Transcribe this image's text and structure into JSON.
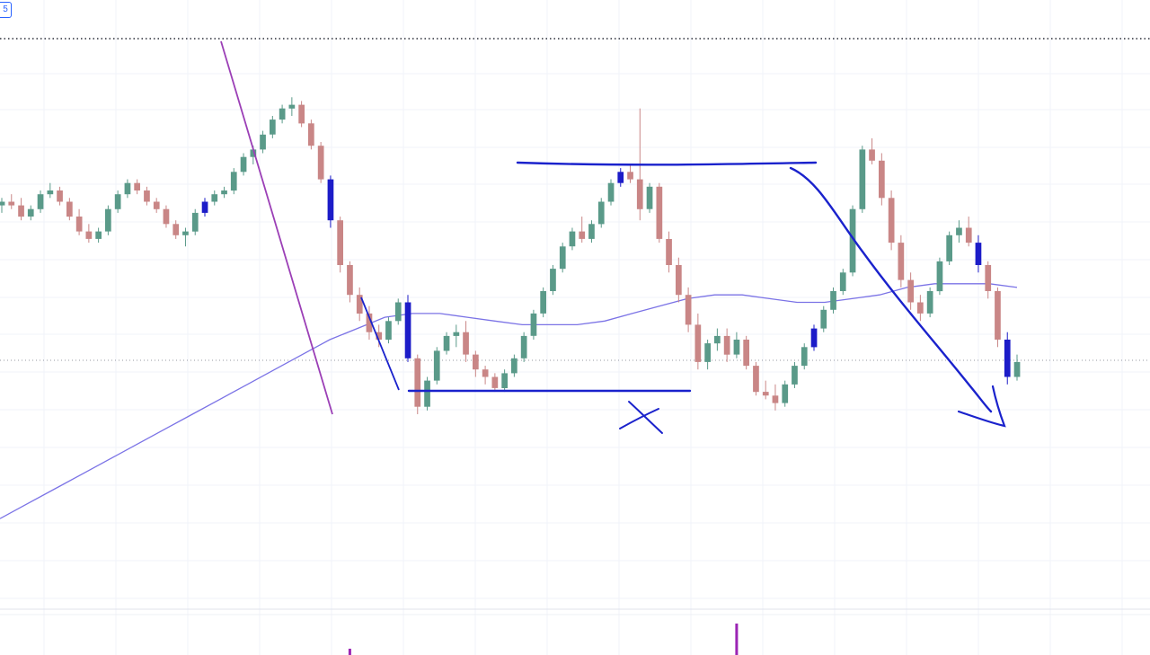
{
  "badge": {
    "text": "5"
  },
  "colors": {
    "up_candle": "#5a9a89",
    "down_candle": "#c98686",
    "highlight_candle": "#1c1cc8",
    "moving_average": "#7b73e6",
    "annotation_ink": "#1a22cc",
    "annotation_purple": "#9b3fb6",
    "volume_spike": "#9b25b4",
    "grid": "#f0f3fa"
  },
  "chart_data": {
    "type": "candlestick",
    "title": "",
    "xlabel": "",
    "ylabel": "",
    "grid": true,
    "legend": "none",
    "price_range": [
      0,
      100
    ],
    "candles": [
      [
        56,
        58,
        54,
        57
      ],
      [
        57,
        59,
        55,
        56
      ],
      [
        56,
        58,
        52,
        53
      ],
      [
        53,
        56,
        52,
        55
      ],
      [
        55,
        60,
        54,
        59
      ],
      [
        59,
        62,
        58,
        60
      ],
      [
        60,
        61,
        56,
        57
      ],
      [
        57,
        58,
        52,
        53
      ],
      [
        53,
        55,
        48,
        49
      ],
      [
        49,
        51,
        46,
        47
      ],
      [
        47,
        50,
        46,
        49
      ],
      [
        49,
        56,
        48,
        55
      ],
      [
        55,
        60,
        54,
        59
      ],
      [
        59,
        63,
        58,
        62
      ],
      [
        62,
        63,
        59,
        60
      ],
      [
        60,
        61,
        56,
        57
      ],
      [
        57,
        58,
        54,
        55
      ],
      [
        55,
        56,
        50,
        51
      ],
      [
        51,
        52,
        47,
        48
      ],
      [
        48,
        50,
        45,
        49
      ],
      [
        49,
        55,
        48,
        54
      ],
      [
        54,
        58,
        53,
        57
      ],
      [
        57,
        60,
        56,
        59
      ],
      [
        59,
        61,
        58,
        60
      ],
      [
        60,
        66,
        59,
        65
      ],
      [
        65,
        70,
        64,
        69
      ],
      [
        69,
        72,
        67,
        71
      ],
      [
        71,
        76,
        70,
        75
      ],
      [
        75,
        80,
        74,
        79
      ],
      [
        79,
        83,
        78,
        82
      ],
      [
        82,
        85,
        80,
        83
      ],
      [
        83,
        84,
        77,
        78
      ],
      [
        78,
        79,
        71,
        72
      ],
      [
        72,
        73,
        62,
        63
      ],
      [
        63,
        64,
        50,
        52
      ],
      [
        52,
        53,
        38,
        40
      ],
      [
        40,
        41,
        30,
        32
      ],
      [
        32,
        34,
        25,
        27
      ],
      [
        27,
        29,
        20,
        22
      ],
      [
        22,
        24,
        18,
        20
      ],
      [
        20,
        26,
        19,
        25
      ],
      [
        25,
        31,
        24,
        30
      ],
      [
        30,
        32,
        14,
        15
      ],
      [
        15,
        16,
        0,
        2
      ],
      [
        2,
        10,
        1,
        9
      ],
      [
        9,
        18,
        8,
        17
      ],
      [
        17,
        22,
        16,
        21
      ],
      [
        21,
        24,
        18,
        22
      ],
      [
        22,
        25,
        14,
        16
      ],
      [
        16,
        17,
        10,
        12
      ],
      [
        12,
        13,
        8,
        10
      ],
      [
        10,
        11,
        6,
        7
      ],
      [
        7,
        12,
        6,
        11
      ],
      [
        11,
        16,
        10,
        15
      ],
      [
        15,
        22,
        14,
        21
      ],
      [
        21,
        28,
        20,
        27
      ],
      [
        27,
        34,
        26,
        33
      ],
      [
        33,
        40,
        32,
        39
      ],
      [
        39,
        46,
        38,
        45
      ],
      [
        45,
        50,
        44,
        49
      ],
      [
        49,
        53,
        46,
        47
      ],
      [
        47,
        52,
        46,
        51
      ],
      [
        51,
        58,
        50,
        57
      ],
      [
        57,
        63,
        56,
        62
      ],
      [
        62,
        66,
        61,
        65
      ],
      [
        65,
        67,
        62,
        63
      ],
      [
        63,
        82,
        52,
        55
      ],
      [
        55,
        62,
        54,
        61
      ],
      [
        61,
        62,
        46,
        47
      ],
      [
        47,
        49,
        38,
        40
      ],
      [
        40,
        42,
        30,
        32
      ],
      [
        32,
        34,
        22,
        24
      ],
      [
        24,
        27,
        12,
        14
      ],
      [
        14,
        20,
        12,
        19
      ],
      [
        19,
        23,
        17,
        21
      ],
      [
        21,
        23,
        14,
        16
      ],
      [
        16,
        22,
        15,
        20
      ],
      [
        20,
        21,
        12,
        13
      ],
      [
        13,
        14,
        5,
        6
      ],
      [
        6,
        9,
        4,
        5
      ],
      [
        5,
        8,
        1,
        3
      ],
      [
        3,
        9,
        2,
        8
      ],
      [
        8,
        14,
        7,
        13
      ],
      [
        13,
        19,
        12,
        18
      ],
      [
        18,
        24,
        17,
        23
      ],
      [
        23,
        29,
        22,
        28
      ],
      [
        28,
        34,
        27,
        33
      ],
      [
        33,
        39,
        32,
        38
      ],
      [
        38,
        56,
        37,
        55
      ],
      [
        55,
        72,
        54,
        71
      ],
      [
        71,
        74,
        67,
        68
      ],
      [
        68,
        70,
        56,
        58
      ],
      [
        58,
        60,
        44,
        46
      ],
      [
        46,
        48,
        34,
        36
      ],
      [
        36,
        38,
        28,
        30
      ],
      [
        30,
        32,
        25,
        27
      ],
      [
        27,
        34,
        26,
        33
      ],
      [
        33,
        42,
        32,
        41
      ],
      [
        41,
        49,
        40,
        48
      ],
      [
        48,
        52,
        46,
        50
      ],
      [
        50,
        53,
        45,
        46
      ],
      [
        46,
        48,
        38,
        40
      ],
      [
        40,
        41,
        31,
        33
      ],
      [
        33,
        34,
        18,
        20
      ],
      [
        20,
        22,
        8,
        10
      ],
      [
        10,
        16,
        9,
        14
      ]
    ],
    "highlighted_candles": [
      21,
      34,
      42,
      64,
      84,
      101,
      104
    ],
    "moving_average": [
      -28,
      -24,
      -20,
      -16,
      -12,
      -8,
      -4,
      0,
      4,
      8,
      12,
      16,
      20,
      23,
      26,
      27,
      27,
      26,
      25,
      24,
      24,
      24,
      25,
      27,
      29,
      31,
      32,
      32,
      31,
      30,
      30,
      31,
      32,
      34,
      35,
      35,
      35,
      34
    ],
    "volume_spikes": [
      {
        "candle": 36,
        "level": 0.2
      },
      {
        "candle": 76,
        "level": 1.0
      }
    ],
    "horizontal_levels": [
      {
        "name": "resistance",
        "value": 78
      },
      {
        "name": "support",
        "value": 4
      },
      {
        "name": "top-dotted",
        "value": 100
      },
      {
        "name": "current-price-dotted",
        "value": 11
      }
    ]
  }
}
